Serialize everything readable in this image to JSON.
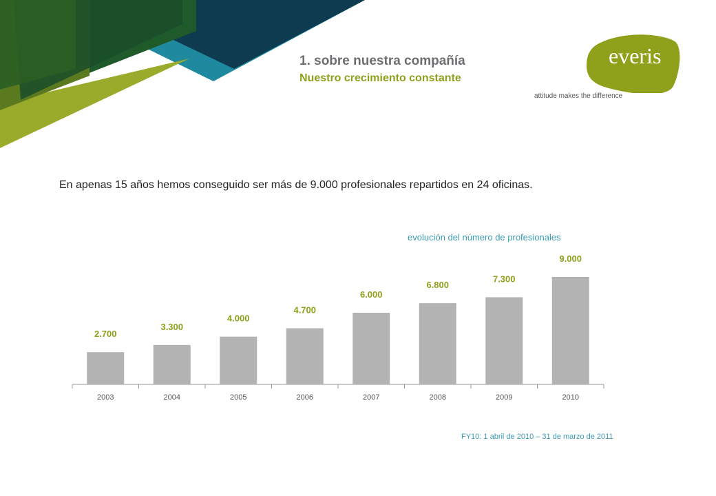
{
  "header": {
    "title": "1. sobre nuestra compañía",
    "subtitle": "Nuestro crecimiento constante"
  },
  "logo": {
    "wordmark": "everis",
    "tagline": "attitude makes the difference"
  },
  "intro_text": "En apenas 15 años hemos conseguido ser más de 9.000 profesionales repartidos en 24 oficinas.",
  "footnote": "FY10: 1 abril de 2010 – 31 de marzo de 2011",
  "colors": {
    "brand_green": "#8fa01a",
    "teal": "#3a9ab1",
    "bar_gray": "#b3b3b3",
    "dark_navy": "#0f3b50"
  },
  "chart_data": {
    "type": "bar",
    "title": "evolución del número de profesionales",
    "categories": [
      "2003",
      "2004",
      "2005",
      "2006",
      "2007",
      "2008",
      "2009",
      "2010"
    ],
    "values": [
      2700,
      3300,
      4000,
      4700,
      6000,
      6800,
      7300,
      9000
    ],
    "value_labels": [
      "2.700",
      "3.300",
      "4.000",
      "4.700",
      "6.000",
      "6.800",
      "7.300",
      "9.000"
    ],
    "xlabel": "",
    "ylabel": "",
    "grid": false,
    "legend": "none"
  }
}
